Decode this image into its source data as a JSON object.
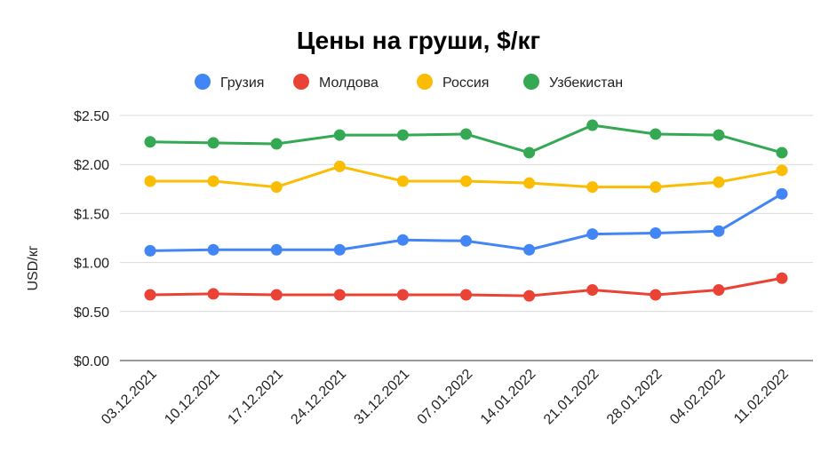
{
  "chart_data": {
    "type": "line",
    "title": "Цены на груши, $/кг",
    "xlabel": "",
    "ylabel": "USD/кг",
    "categories": [
      "03.12.2021",
      "10.12.2021",
      "17.12.2021",
      "24.12.2021",
      "31.12.2021",
      "07.01.2022",
      "14.01.2022",
      "21.01.2022",
      "28.01.2022",
      "04.02.2022",
      "11.02.2022"
    ],
    "ylim": [
      0,
      2.5
    ],
    "yticks": [
      0,
      0.5,
      1.0,
      1.5,
      2.0,
      2.5
    ],
    "ytick_labels": [
      "$0.00",
      "$0.50",
      "$1.00",
      "$1.50",
      "$2.00",
      "$2.50"
    ],
    "grid": true,
    "legend_position": "top",
    "series": [
      {
        "name": "Грузия",
        "color": "#4285F4",
        "values": [
          1.12,
          1.13,
          1.13,
          1.13,
          1.23,
          1.22,
          1.13,
          1.29,
          1.3,
          1.32,
          1.7
        ]
      },
      {
        "name": "Молдова",
        "color": "#EA4335",
        "values": [
          0.67,
          0.68,
          0.67,
          0.67,
          0.67,
          0.67,
          0.66,
          0.72,
          0.67,
          0.72,
          0.84
        ]
      },
      {
        "name": "Россия",
        "color": "#FBBC04",
        "values": [
          1.83,
          1.83,
          1.77,
          1.98,
          1.83,
          1.83,
          1.81,
          1.77,
          1.77,
          1.82,
          1.94
        ]
      },
      {
        "name": "Узбекистан",
        "color": "#34A853",
        "values": [
          2.23,
          2.22,
          2.21,
          2.3,
          2.3,
          2.31,
          2.12,
          2.4,
          2.31,
          2.3,
          2.12
        ]
      }
    ]
  }
}
